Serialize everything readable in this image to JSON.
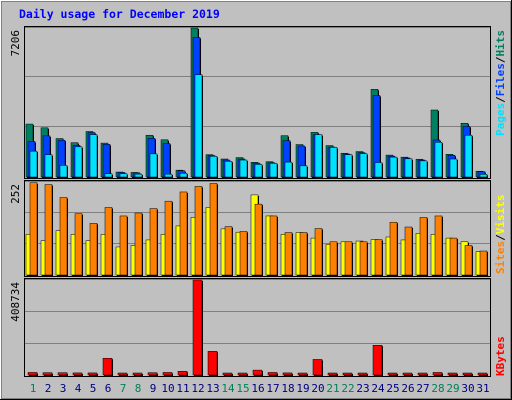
{
  "chart_data": [
    {
      "type": "bar",
      "title": "Daily usage for December 2019",
      "ymax_label": "7206",
      "ylim": [
        0,
        7206
      ],
      "legend": [
        {
          "label": "Pages",
          "color": "#00e0ff"
        },
        {
          "label": "/",
          "color": "#000000"
        },
        {
          "label": "Files",
          "color": "#0040ff"
        },
        {
          "label": "/",
          "color": "#000000"
        },
        {
          "label": "Hits",
          "color": "#008060"
        }
      ],
      "categories": [
        "1",
        "2",
        "3",
        "4",
        "5",
        "6",
        "7",
        "8",
        "9",
        "10",
        "11",
        "12",
        "13",
        "14",
        "15",
        "16",
        "17",
        "18",
        "19",
        "20",
        "21",
        "22",
        "23",
        "24",
        "25",
        "26",
        "27",
        "28",
        "29",
        "30",
        "31"
      ],
      "series": [
        {
          "name": "Hits",
          "color": "#008060",
          "values": [
            2560,
            2380,
            1860,
            1660,
            2200,
            1640,
            240,
            220,
            2020,
            1800,
            330,
            7206,
            1080,
            870,
            940,
            710,
            740,
            2000,
            1570,
            2160,
            1520,
            1150,
            1230,
            4240,
            1060,
            960,
            860,
            3240,
            1100,
            2600,
            280
          ]
        },
        {
          "name": "Files",
          "color": "#0040ff",
          "values": [
            1720,
            1990,
            1780,
            1530,
            2150,
            1580,
            220,
            200,
            1870,
            1620,
            300,
            6750,
            1040,
            820,
            870,
            670,
            690,
            1760,
            1500,
            2050,
            1450,
            1110,
            1180,
            3940,
            1010,
            920,
            820,
            1790,
            1050,
            2450,
            260
          ]
        },
        {
          "name": "Pages",
          "color": "#00e0ff",
          "values": [
            1250,
            1080,
            560,
            1460,
            2050,
            160,
            160,
            140,
            1120,
            140,
            180,
            4950,
            1000,
            760,
            820,
            610,
            660,
            720,
            540,
            2050,
            1430,
            1080,
            1130,
            700,
            960,
            880,
            780,
            1680,
            870,
            2020,
            130
          ]
        }
      ]
    },
    {
      "type": "bar",
      "ymax_label": "252",
      "ylim": [
        0,
        252
      ],
      "legend": [
        {
          "label": "Sites",
          "color": "#ff8000"
        },
        {
          "label": "/",
          "color": "#000000"
        },
        {
          "label": "Visits",
          "color": "#ffff00"
        }
      ],
      "categories": [
        "1",
        "2",
        "3",
        "4",
        "5",
        "6",
        "7",
        "8",
        "9",
        "10",
        "11",
        "12",
        "13",
        "14",
        "15",
        "16",
        "17",
        "18",
        "19",
        "20",
        "21",
        "22",
        "23",
        "24",
        "25",
        "26",
        "27",
        "28",
        "29",
        "30",
        "31"
      ],
      "series": [
        {
          "name": "Visits",
          "color": "#ffff00",
          "values": [
            110,
            93,
            120,
            110,
            93,
            110,
            76,
            80,
            95,
            110,
            133,
            156,
            183,
            125,
            116,
            217,
            160,
            110,
            115,
            100,
            83,
            90,
            92,
            96,
            103,
            95,
            113,
            110,
            100,
            90,
            63
          ]
        },
        {
          "name": "Sites",
          "color": "#ff8000",
          "values": [
            250,
            245,
            210,
            166,
            140,
            183,
            160,
            168,
            180,
            200,
            225,
            240,
            248,
            131,
            118,
            192,
            160,
            115,
            115,
            126,
            90,
            90,
            90,
            96,
            143,
            130,
            156,
            160,
            100,
            80,
            65
          ]
        }
      ]
    },
    {
      "type": "bar",
      "ymax_label": "408734",
      "ylim": [
        0,
        408734
      ],
      "legend": [
        {
          "label": "KBytes",
          "color": "#ff0000"
        }
      ],
      "categories": [
        "1",
        "2",
        "3",
        "4",
        "5",
        "6",
        "7",
        "8",
        "9",
        "10",
        "11",
        "12",
        "13",
        "14",
        "15",
        "16",
        "17",
        "18",
        "19",
        "20",
        "21",
        "22",
        "23",
        "24",
        "25",
        "26",
        "27",
        "28",
        "29",
        "30",
        "31"
      ],
      "series": [
        {
          "name": "KBytes",
          "color": "#ff0000",
          "values": [
            11000,
            10000,
            10000,
            9000,
            9000,
            72000,
            8000,
            7000,
            10000,
            11000,
            16000,
            408734,
            102000,
            6000,
            8000,
            21000,
            11000,
            9000,
            7000,
            67000,
            6000,
            6000,
            6000,
            128000,
            5000,
            5000,
            5000,
            11000,
            5000,
            6000,
            5000
          ]
        }
      ]
    }
  ],
  "x_axis": {
    "weekend_days": [
      1,
      7,
      8,
      14,
      15,
      21,
      22,
      28,
      29
    ],
    "weekday_color": "#000080",
    "weekend_color": "#00805a"
  },
  "colors": {
    "background": "#c0c0c0",
    "grid": "#808080",
    "title": "#0000ff"
  }
}
